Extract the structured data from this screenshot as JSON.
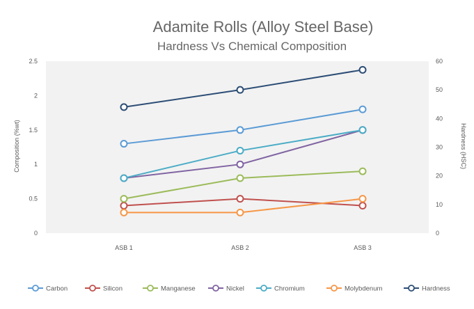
{
  "chart_data": {
    "type": "line",
    "title": "Adamite Rolls (Alloy Steel Base)",
    "subtitle": "Hardness Vs Chemical Composition",
    "categories": [
      "ASB 1",
      "ASB 2",
      "ASB 3"
    ],
    "y_left": {
      "label": "Composition (%wt)",
      "range": [
        0,
        2.5
      ],
      "ticks": [
        "0",
        "0.5",
        "1",
        "1.5",
        "2",
        "2.5"
      ]
    },
    "y_right": {
      "label": "Hardness (HSC)",
      "range": [
        0,
        60
      ],
      "ticks": [
        "0",
        "10",
        "20",
        "30",
        "40",
        "50",
        "60"
      ]
    },
    "grid": false,
    "legend_position": "bottom",
    "series": [
      {
        "name": "Carbon",
        "axis": "left",
        "color": "#5b9bd5",
        "values": [
          1.3,
          1.5,
          1.8
        ]
      },
      {
        "name": "Silicon",
        "axis": "left",
        "color": "#c0504d",
        "values": [
          0.4,
          0.5,
          0.4
        ]
      },
      {
        "name": "Manganese",
        "axis": "left",
        "color": "#9bbb59",
        "values": [
          0.5,
          0.8,
          0.9
        ]
      },
      {
        "name": "Nickel",
        "axis": "left",
        "color": "#8064a2",
        "values": [
          0.8,
          1.0,
          1.5
        ]
      },
      {
        "name": "Chromium",
        "axis": "left",
        "color": "#4bacc6",
        "values": [
          0.8,
          1.2,
          1.5
        ]
      },
      {
        "name": "Molybdenum",
        "axis": "left",
        "color": "#f79646",
        "values": [
          0.3,
          0.3,
          0.5
        ]
      },
      {
        "name": "Hardness",
        "axis": "right",
        "color": "#2c4d75",
        "values": [
          44,
          50,
          57
        ]
      }
    ]
  }
}
